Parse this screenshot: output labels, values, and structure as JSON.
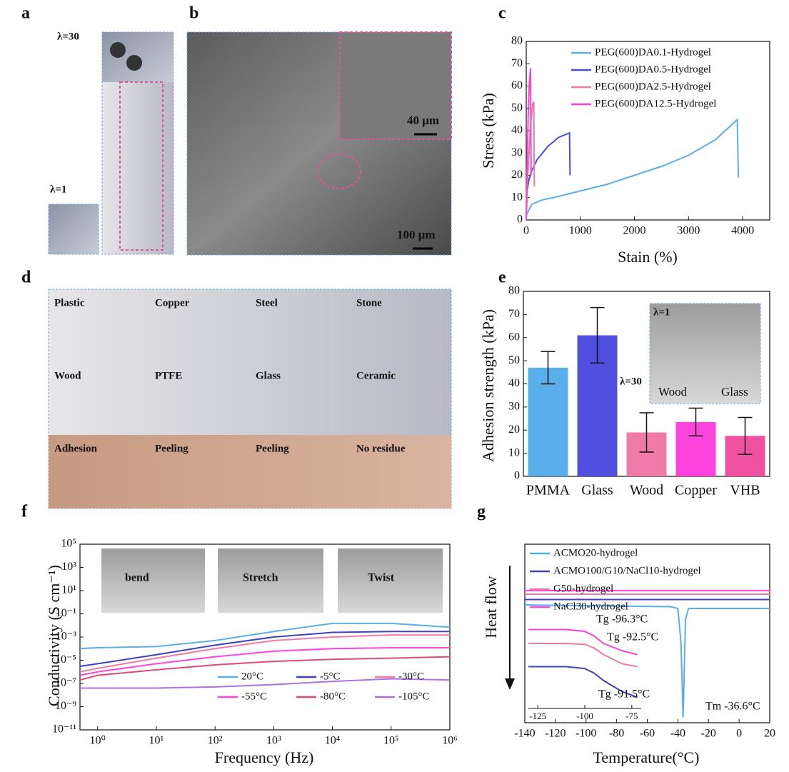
{
  "panel_labels": [
    "a",
    "b",
    "c",
    "d",
    "e",
    "f",
    "g"
  ],
  "photo_a": {
    "labels": [
      "λ=30",
      "λ=1"
    ]
  },
  "photo_b": {
    "labels": [
      "40 μm",
      "100 μm"
    ]
  },
  "photo_d": {
    "labels": [
      "Plastic",
      "Copper",
      "Steel",
      "Stone",
      "Wood",
      "PTFE",
      "Glass",
      "Ceramic",
      "Adhesion",
      "Peeling",
      "Peeling",
      "No residue"
    ]
  },
  "chart_data": [
    {
      "type": "line",
      "xlabel": "Stain (%)",
      "ylabel": "Stress (kPa)",
      "xlim": [
        0,
        4500
      ],
      "xticks": [
        0,
        1000,
        2000,
        3000,
        4000
      ],
      "ylim": [
        0,
        80
      ],
      "yticks": [
        0,
        10,
        20,
        30,
        40,
        50,
        60,
        70,
        80
      ],
      "series": [
        {
          "name": "PEG(600)DA0.1-Hydrogel",
          "color": "#5aaeea",
          "x": [
            0,
            100,
            300,
            500,
            1000,
            1500,
            2000,
            2500,
            3000,
            3500,
            3900,
            3920
          ],
          "values": [
            2,
            7,
            9,
            10,
            13,
            16,
            20,
            24,
            29,
            36,
            45,
            19
          ]
        },
        {
          "name": "PEG(600)DA0.5-Hydrogel",
          "color": "#4b4bdc",
          "x": [
            0,
            50,
            100,
            200,
            300,
            400,
            500,
            600,
            700,
            800,
            810
          ],
          "values": [
            10,
            18,
            22,
            27,
            30,
            33,
            35,
            37,
            38,
            39,
            20
          ]
        },
        {
          "name": "PEG(600)DA2.5-Hydrogel",
          "color": "#f07aa8",
          "x": [
            0,
            30,
            60,
            90,
            120,
            140,
            150
          ],
          "values": [
            0,
            20,
            35,
            45,
            52,
            53,
            15
          ]
        },
        {
          "name": "PEG(600)DA12.5-Hydrogel",
          "color": "#ff3fd0",
          "x": [
            0,
            20,
            40,
            60,
            80,
            90
          ],
          "values": [
            0,
            30,
            50,
            62,
            68,
            20
          ]
        }
      ]
    },
    {
      "type": "bar",
      "ylabel": "Adhesion strength (kPa)",
      "categories": [
        "PMMA",
        "Glass",
        "Wood",
        "Copper",
        "VHB"
      ],
      "values": [
        47,
        61,
        19,
        23.5,
        17.5
      ],
      "errors": [
        7,
        12,
        8.5,
        6,
        8
      ],
      "colors": [
        "#5aaeea",
        "#5050e0",
        "#f07aa8",
        "#ff44dd",
        "#f050a0"
      ],
      "ylim": [
        0,
        80
      ],
      "yticks": [
        0,
        10,
        20,
        30,
        40,
        50,
        60,
        70,
        80
      ],
      "inset_labels": [
        "λ=1",
        "λ=30",
        "Wood",
        "Glass"
      ]
    },
    {
      "type": "line",
      "xlabel": "Frequency (Hz)",
      "ylabel": "Conductivity (S cm⁻¹)",
      "xscale": "log",
      "yscale": "log",
      "xlim": [
        0.5,
        1000000
      ],
      "xticks": [
        {
          "value": 1,
          "label": "10⁰"
        },
        {
          "value": 10,
          "label": "10¹"
        },
        {
          "value": 100,
          "label": "10²"
        },
        {
          "value": 1000,
          "label": "10³"
        },
        {
          "value": 10000,
          "label": "10⁴"
        },
        {
          "value": 100000,
          "label": "10⁵"
        },
        {
          "value": 1000000,
          "label": "10⁶"
        }
      ],
      "ylim": [
        1e-11,
        100000
      ],
      "yticks": [
        {
          "value": 1e-11,
          "label": "10⁻¹¹"
        },
        {
          "value": 1e-09,
          "label": "10⁻⁹"
        },
        {
          "value": 1e-07,
          "label": "10⁻⁷"
        },
        {
          "value": 1e-05,
          "label": "10⁻⁵"
        },
        {
          "value": 0.001,
          "label": "10⁻³"
        },
        {
          "value": 0.1,
          "label": "10⁻¹"
        },
        {
          "value": 10,
          "label": "10¹"
        },
        {
          "value": 1000,
          "label": "10³"
        },
        {
          "value": 100000,
          "label": "10⁵"
        }
      ],
      "inset_labels": [
        "bend",
        "Stretch",
        "Twist"
      ],
      "x": [
        0.5,
        1,
        10,
        100,
        1000,
        10000,
        100000,
        1000000
      ],
      "series": [
        {
          "name": "20°C",
          "color": "#5aaeea",
          "values": [
            0.0001,
            0.00012,
            0.00015,
            0.0005,
            0.003,
            0.015,
            0.015,
            0.007
          ]
        },
        {
          "name": "-5°C",
          "color": "#4040c0",
          "values": [
            3e-06,
            5e-06,
            3e-05,
            0.0002,
            0.001,
            0.0025,
            0.003,
            0.003
          ]
        },
        {
          "name": "-30°C",
          "color": "#f07aa8",
          "values": [
            1e-06,
            2e-06,
            1.5e-05,
            0.0001,
            0.0005,
            0.001,
            0.0015,
            0.0015
          ]
        },
        {
          "name": "-55°C",
          "color": "#ff44dd",
          "values": [
            5e-07,
            1e-06,
            5e-06,
            2e-05,
            6e-05,
            0.0001,
            0.00012,
            0.00012
          ]
        },
        {
          "name": "-80°C",
          "color": "#e04a7a",
          "values": [
            2e-07,
            5e-07,
            1.5e-06,
            4e-06,
            8e-06,
            1.2e-05,
            1.5e-05,
            2e-05
          ]
        },
        {
          "name": "-105°C",
          "color": "#b070e0",
          "values": [
            4e-08,
            4e-08,
            4e-08,
            5e-08,
            8e-08,
            1.5e-07,
            2.5e-07,
            2e-07
          ]
        }
      ]
    },
    {
      "type": "line",
      "xlabel": "Temperature(°C)",
      "ylabel": "Heat flow",
      "xlim": [
        -140,
        20
      ],
      "xticks": [
        -140,
        -120,
        -100,
        -80,
        -60,
        -40,
        -20,
        0,
        20
      ],
      "ylim": [
        0,
        100
      ],
      "series": [
        {
          "name": "ACMO20-hydrogel",
          "color": "#5aaeea",
          "x": [
            -140,
            -45,
            -40,
            -38,
            -36.6,
            -35,
            -33,
            20
          ],
          "values": [
            66,
            65,
            64,
            45,
            3,
            58,
            64,
            64
          ]
        },
        {
          "name": "ACMO100/G10/NaCl10-hydrogel",
          "color": "#4040c0",
          "x": [
            -140,
            20
          ],
          "values": [
            69,
            69
          ]
        },
        {
          "name": "G50-hydrogel",
          "color": "#f07aa8",
          "x": [
            -140,
            20
          ],
          "values": [
            72,
            72
          ]
        },
        {
          "name": "NaCl30-hydrogel",
          "color": "#ff44dd",
          "x": [
            -140,
            20
          ],
          "values": [
            74,
            74
          ]
        }
      ],
      "annotations": [
        "Tg -96.3°C",
        "Tg -92.5°C",
        "Tg -91.5°C",
        "Tm -36.6°C"
      ],
      "inset": {
        "xlim": [
          -130,
          -70
        ],
        "xticks": [
          -125,
          -100,
          -75
        ],
        "ylim": [
          0,
          100
        ],
        "series": [
          {
            "color": "#ff44dd",
            "x": [
              -130,
              -110,
              -100,
              -95,
              -90,
              -80,
              -72
            ],
            "values": [
              85,
              85,
              83,
              78,
              70,
              62,
              58
            ]
          },
          {
            "color": "#f07aa8",
            "x": [
              -130,
              -110,
              -100,
              -95,
              -90,
              -80,
              -72
            ],
            "values": [
              70,
              70,
              69,
              65,
              58,
              48,
              45
            ]
          },
          {
            "color": "#4040c0",
            "x": [
              -130,
              -110,
              -100,
              -95,
              -90,
              -80,
              -72
            ],
            "values": [
              45,
              45,
              43,
              38,
              30,
              18,
              12
            ]
          }
        ]
      }
    }
  ]
}
